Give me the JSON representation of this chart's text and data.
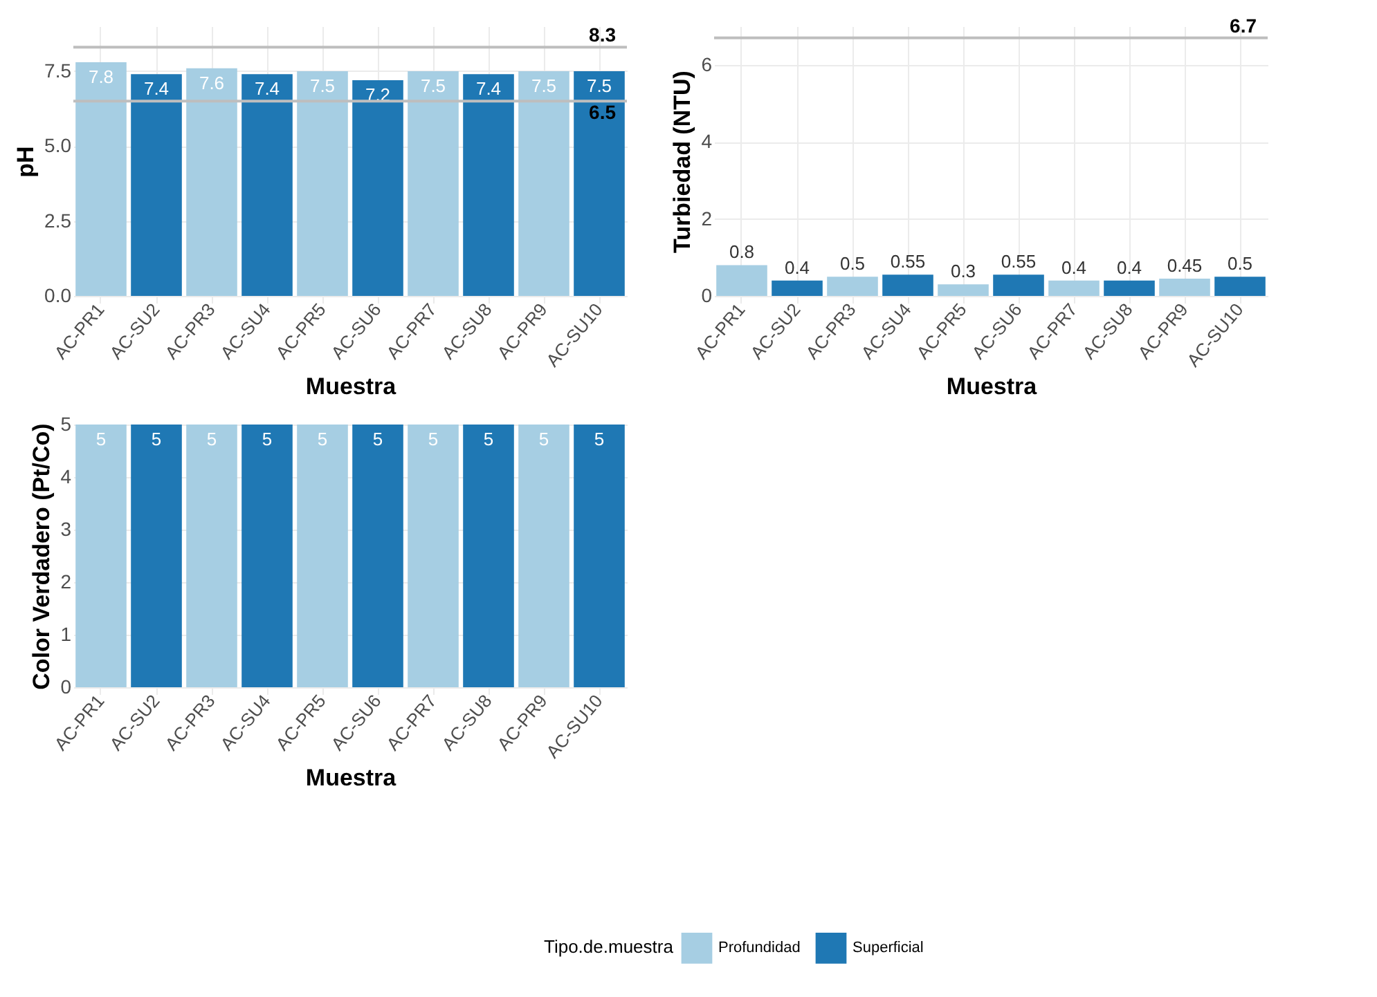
{
  "chart_data": [
    {
      "type": "bar",
      "xlabel": "Muestra",
      "ylabel": "pH",
      "categories": [
        "AC-PR1",
        "AC-SU2",
        "AC-PR3",
        "AC-SU4",
        "AC-PR5",
        "AC-SU6",
        "AC-PR7",
        "AC-SU8",
        "AC-PR9",
        "AC-SU10"
      ],
      "series": [
        {
          "name": "Profundidad",
          "color": "#a6cee3",
          "values": [
            7.8,
            null,
            7.6,
            null,
            7.5,
            null,
            7.5,
            null,
            7.5,
            null
          ]
        },
        {
          "name": "Superficial",
          "color": "#1f78b4",
          "values": [
            null,
            7.4,
            null,
            7.4,
            null,
            7.2,
            null,
            7.4,
            null,
            7.5
          ]
        }
      ],
      "ylim": [
        0,
        9
      ],
      "yticks": [
        {
          "value": 0,
          "label": "0.0"
        },
        2.5,
        {
          "value": 5,
          "label": "5.0"
        },
        7.5
      ],
      "grid": true,
      "data_labels": true,
      "legend": "bottom",
      "legend_title": "Tipo.de.muestra",
      "ref_lines": [
        {
          "axis": "y",
          "value": 8.3,
          "label": "8.3",
          "color": "#bebebe"
        },
        {
          "axis": "y",
          "value": 6.5,
          "label": "6.5",
          "color": "#bebebe"
        }
      ]
    },
    {
      "type": "bar",
      "xlabel": "Muestra",
      "ylabel": "Turbiedad (NTU)",
      "categories": [
        "AC-PR1",
        "AC-SU2",
        "AC-PR3",
        "AC-SU4",
        "AC-PR5",
        "AC-SU6",
        "AC-PR7",
        "AC-SU8",
        "AC-PR9",
        "AC-SU10"
      ],
      "series": [
        {
          "name": "Profundidad",
          "color": "#a6cee3",
          "values": [
            0.8,
            null,
            0.5,
            null,
            0.3,
            null,
            0.4,
            null,
            0.45,
            null
          ]
        },
        {
          "name": "Superficial",
          "color": "#1f78b4",
          "values": [
            null,
            0.4,
            null,
            0.55,
            null,
            0.55,
            null,
            0.4,
            null,
            0.5
          ]
        }
      ],
      "ylim": [
        0,
        7
      ],
      "yticks": [
        0,
        2,
        4,
        6
      ],
      "grid": true,
      "data_labels": true,
      "ref_lines": [
        {
          "axis": "y",
          "value": 6.7,
          "label": "6.7",
          "color": "#bebebe"
        }
      ]
    },
    {
      "type": "bar",
      "xlabel": "Muestra",
      "ylabel": "Color Verdadero (Pt/Co)",
      "categories": [
        "AC-PR1",
        "AC-SU2",
        "AC-PR3",
        "AC-SU4",
        "AC-PR5",
        "AC-SU6",
        "AC-PR7",
        "AC-SU8",
        "AC-PR9",
        "AC-SU10"
      ],
      "series": [
        {
          "name": "Profundidad",
          "color": "#a6cee3",
          "values": [
            5,
            null,
            5,
            null,
            5,
            null,
            5,
            null,
            5,
            null
          ]
        },
        {
          "name": "Superficial",
          "color": "#1f78b4",
          "values": [
            null,
            5,
            null,
            5,
            null,
            5,
            null,
            5,
            null,
            5
          ]
        }
      ],
      "ylim": [
        0,
        5
      ],
      "yticks": [
        0,
        1,
        2,
        3,
        4,
        5
      ],
      "grid": true,
      "data_labels": true
    }
  ]
}
